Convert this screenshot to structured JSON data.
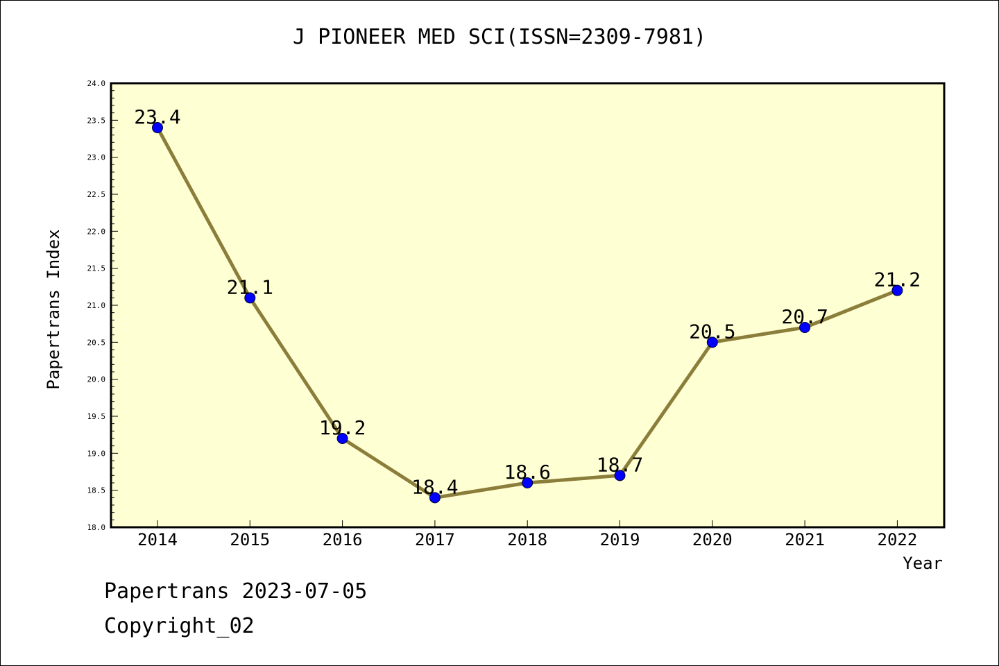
{
  "chart_data": {
    "type": "line",
    "title": "J PIONEER MED SCI(ISSN=2309-7981)",
    "xlabel": "Year",
    "ylabel": "Papertrans Index",
    "categories": [
      "2014",
      "2015",
      "2016",
      "2017",
      "2018",
      "2019",
      "2020",
      "2021",
      "2022"
    ],
    "series": [
      {
        "values": [
          23.4,
          21.1,
          19.2,
          18.4,
          18.6,
          18.7,
          20.5,
          20.7,
          21.2
        ]
      }
    ],
    "data_labels": [
      "23.4",
      "21.1",
      "19.2",
      "18.4",
      "18.6",
      "18.7",
      "20.5",
      "20.7",
      "21.2"
    ],
    "ylim": [
      18.0,
      24.0
    ],
    "yticks": [
      "18.0",
      "18.5",
      "19.0",
      "19.5",
      "20.0",
      "20.5",
      "21.0",
      "21.5",
      "22.0",
      "22.5",
      "23.0",
      "23.5",
      "24.0"
    ],
    "grid": false,
    "legend": "none",
    "colors": {
      "plot_background": "#ffffd4",
      "line": "#8b7d3a",
      "marker": "#0000ff",
      "axes": "#000000"
    }
  },
  "footer": {
    "date_line": "Papertrans 2023-07-05",
    "copyright_line": "Copyright_02"
  }
}
